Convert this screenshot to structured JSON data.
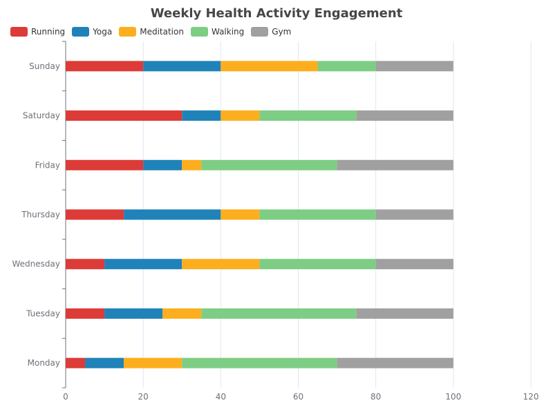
{
  "chart_data": {
    "type": "bar",
    "orientation": "horizontal",
    "stacked": true,
    "title": "Weekly Health Activity Engagement",
    "categories": [
      "Monday",
      "Tuesday",
      "Wednesday",
      "Thursday",
      "Friday",
      "Saturday",
      "Sunday"
    ],
    "series": [
      {
        "name": "Running",
        "color": "#dc3b37",
        "values": [
          5,
          10,
          10,
          15,
          20,
          30,
          20
        ]
      },
      {
        "name": "Yoga",
        "color": "#1f83b9",
        "values": [
          10,
          15,
          20,
          25,
          10,
          10,
          20
        ]
      },
      {
        "name": "Meditation",
        "color": "#fdae1e",
        "values": [
          15,
          10,
          20,
          10,
          5,
          10,
          25
        ]
      },
      {
        "name": "Walking",
        "color": "#7ecd84",
        "values": [
          40,
          40,
          30,
          30,
          35,
          25,
          15
        ]
      },
      {
        "name": "Gym",
        "color": "#a0a0a0",
        "values": [
          30,
          25,
          20,
          20,
          30,
          25,
          20
        ]
      }
    ],
    "xlim": [
      0,
      120
    ],
    "xticks": [
      "0",
      "20",
      "40",
      "60",
      "80",
      "100",
      "120"
    ],
    "grid": true,
    "legend_position": "top-left"
  }
}
